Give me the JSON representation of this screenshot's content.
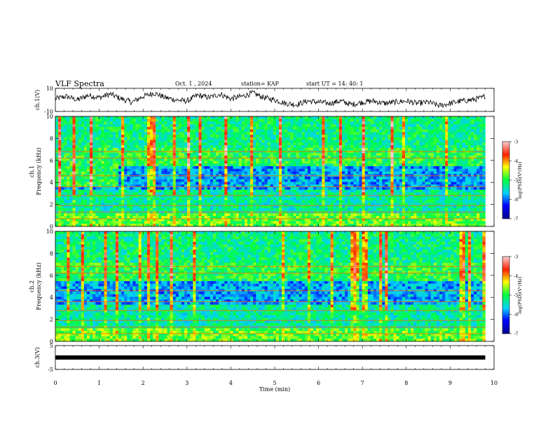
{
  "header": {
    "title": "VLF Spectra",
    "date": "Oct. 1  , 2024",
    "station": "station= KAP",
    "start": "start  UT  =   14: 40: 1"
  },
  "chart_data": [
    {
      "type": "line",
      "panel": "ch1-waveform",
      "ylabel": "ch.1(V)",
      "ylim": [
        -10,
        10
      ],
      "yticks": [
        "10",
        "-10"
      ],
      "xlim": [
        0,
        10
      ],
      "series": [
        {
          "x": [
            0,
            0.25,
            0.5,
            0.75,
            1.0,
            1.25,
            1.5,
            1.75,
            2.0,
            2.25,
            2.5,
            2.75,
            3.0,
            3.25,
            3.5,
            3.75,
            4.0,
            4.25,
            4.5,
            4.75,
            5.0,
            5.25,
            5.5,
            5.75,
            6.0,
            6.25,
            6.5,
            6.75,
            7.0,
            7.25,
            7.5,
            7.75,
            8.0,
            8.25,
            8.5,
            8.75,
            9.0,
            9.25,
            9.5,
            9.75,
            9.8
          ],
          "y": [
            1,
            3,
            0,
            4,
            2,
            5,
            1,
            -2,
            3,
            6,
            2,
            0,
            -1,
            4,
            2,
            5,
            1,
            3,
            6,
            2,
            0,
            -3,
            -4,
            -1,
            -2,
            -3,
            -1,
            -4,
            -2,
            -1,
            -3,
            -2,
            -1,
            -3,
            -2,
            -5,
            -3,
            -1,
            0,
            2,
            4
          ]
        }
      ]
    },
    {
      "type": "heatmap",
      "panel": "ch1-spectrogram",
      "ylabel": "ch.1\nFrequency  (kHz)",
      "yticks": [
        "0",
        "2",
        "4",
        "6",
        "8",
        "10"
      ],
      "ylim": [
        0,
        10
      ],
      "xlim": [
        0,
        10
      ],
      "data_extent_min": [
        0,
        9.8
      ],
      "colorbar": {
        "label": "log(PSD)(V²/Hz)",
        "ticks": [
          "-3",
          "-4",
          "-5",
          "-6",
          "-7"
        ],
        "range": [
          -7,
          -3
        ]
      }
    },
    {
      "type": "heatmap",
      "panel": "ch2-spectrogram",
      "ylabel": "ch.2\nFrequency  (kHz)",
      "yticks": [
        "0",
        "2",
        "4",
        "6",
        "8",
        "10"
      ],
      "ylim": [
        0,
        10
      ],
      "xlim": [
        0,
        10
      ],
      "data_extent_min": [
        0,
        9.8
      ],
      "colorbar": {
        "label": "log(PSD)(V²/Hz)",
        "ticks": [
          "-3",
          "-4",
          "-5",
          "-6",
          "-7"
        ],
        "range": [
          -7,
          -3
        ]
      }
    },
    {
      "type": "line",
      "panel": "ch3-waveform",
      "ylabel": "ch.3(V)",
      "ylim": [
        -5,
        5
      ],
      "yticks": [
        "5",
        "-5"
      ],
      "xlim": [
        0,
        10
      ],
      "series": [
        {
          "x": [
            0,
            9.8
          ],
          "y": [
            0,
            0
          ]
        }
      ]
    }
  ],
  "xaxis": {
    "label": "Time  (min)",
    "ticks": [
      "0",
      "1",
      "2",
      "3",
      "4",
      "5",
      "6",
      "7",
      "8",
      "9",
      "10"
    ]
  }
}
